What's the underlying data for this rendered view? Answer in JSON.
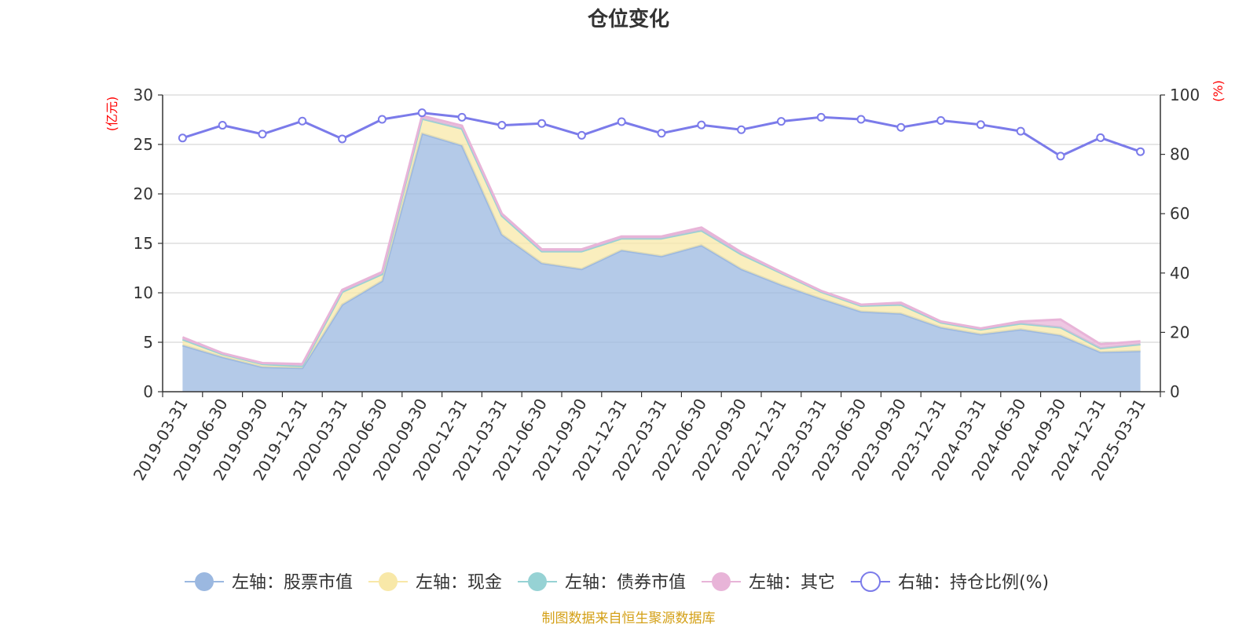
{
  "chart_data": {
    "type": "area",
    "title": "仓位变化",
    "left_axis": {
      "unit_label": "(亿元)",
      "ylim": [
        0,
        30
      ],
      "ticks": [
        "0",
        "5",
        "10",
        "15",
        "20",
        "25",
        "30"
      ]
    },
    "right_axis": {
      "unit_label": "(%)",
      "ylim": [
        0,
        100
      ],
      "ticks": [
        "0",
        "20",
        "40",
        "60",
        "80",
        "100"
      ]
    },
    "categories": [
      "2019-03-31",
      "2019-06-30",
      "2019-09-30",
      "2019-12-31",
      "2020-03-31",
      "2020-06-30",
      "2020-09-30",
      "2020-12-31",
      "2021-03-31",
      "2021-06-30",
      "2021-09-30",
      "2021-12-31",
      "2022-03-31",
      "2022-06-30",
      "2022-09-30",
      "2022-12-31",
      "2023-03-31",
      "2023-06-30",
      "2023-09-30",
      "2023-12-31",
      "2024-03-31",
      "2024-06-30",
      "2024-09-30",
      "2024-12-31",
      "2025-03-31"
    ],
    "series": [
      {
        "name": "左轴：股票市值",
        "type": "stacked-area",
        "axis": "left",
        "color": "#9bb8e0",
        "values": [
          4.7,
          3.5,
          2.5,
          2.4,
          8.8,
          11.2,
          26.1,
          24.9,
          15.9,
          13.0,
          12.4,
          14.3,
          13.7,
          14.8,
          12.4,
          10.8,
          9.4,
          8.1,
          7.9,
          6.5,
          5.8,
          6.3,
          5.7,
          4.0,
          4.1
        ]
      },
      {
        "name": "左轴：现金",
        "type": "stacked-area",
        "axis": "left",
        "color": "#f8e8a8",
        "values": [
          0.6,
          0.3,
          0.3,
          0.2,
          1.3,
          0.7,
          1.5,
          1.7,
          1.9,
          1.2,
          1.8,
          1.2,
          1.8,
          1.5,
          1.5,
          1.2,
          0.7,
          0.6,
          0.9,
          0.5,
          0.5,
          0.6,
          0.8,
          0.4,
          0.7
        ]
      },
      {
        "name": "左轴：债券市值",
        "type": "stacked-area",
        "axis": "left",
        "color": "#96d2d4",
        "values": [
          0,
          0,
          0,
          0,
          0,
          0,
          0,
          0,
          0,
          0,
          0,
          0,
          0,
          0,
          0,
          0,
          0,
          0,
          0,
          0,
          0,
          0,
          0,
          0,
          0
        ]
      },
      {
        "name": "左轴：其它",
        "type": "stacked-area",
        "axis": "left",
        "color": "#e8b4d8",
        "values": [
          0.2,
          0.1,
          0.1,
          0.2,
          0.2,
          0.2,
          0.3,
          0.3,
          0.2,
          0.2,
          0.2,
          0.2,
          0.2,
          0.3,
          0.2,
          0.1,
          0.1,
          0.1,
          0.2,
          0.1,
          0.1,
          0.2,
          0.8,
          0.4,
          0.3
        ]
      },
      {
        "name": "右轴：持仓比例(%)",
        "type": "line",
        "axis": "right",
        "color": "#7b7bea",
        "values": [
          85.5,
          89.8,
          86.8,
          91.2,
          85.2,
          91.8,
          94.0,
          92.5,
          89.8,
          90.4,
          86.4,
          91.0,
          87.1,
          89.9,
          88.3,
          91.1,
          92.5,
          91.8,
          89.1,
          91.4,
          90.0,
          87.8,
          79.4,
          85.6,
          80.9
        ]
      }
    ],
    "grid": true,
    "legend_position": "bottom",
    "source_note": "制图数据来自恒生聚源数据库"
  }
}
